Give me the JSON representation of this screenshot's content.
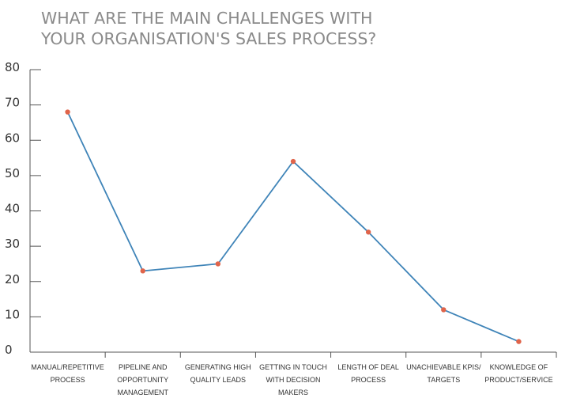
{
  "chart_data": {
    "type": "line",
    "title_lines": [
      "WHAT ARE THE MAIN CHALLENGES WITH",
      "YOUR ORGANISATION'S SALES PROCESS?"
    ],
    "categories": [
      [
        "MANUAL/REPETITIVE",
        "PROCESS"
      ],
      [
        "PIPELINE AND",
        "OPPORTUNITY",
        "MANAGEMENT"
      ],
      [
        "GENERATING HIGH",
        "QUALITY LEADS"
      ],
      [
        "GETTING IN TOUCH",
        "WITH DECISION",
        "MAKERS"
      ],
      [
        "LENGTH OF DEAL",
        "PROCESS"
      ],
      [
        "UNACHIEVABLE KPIS/",
        "TARGETS"
      ],
      [
        "KNOWLEDGE OF",
        "PRODUCT/SERVICE"
      ]
    ],
    "series": [
      {
        "values": [
          68,
          23,
          25,
          54,
          34,
          12,
          3
        ]
      }
    ],
    "ylim": [
      0,
      80
    ],
    "yticks": [
      0,
      10,
      20,
      30,
      40,
      50,
      60,
      70,
      80
    ],
    "xlabel": "",
    "ylabel": "",
    "grid": false,
    "colors": {
      "line": "#3f84b8",
      "marker": "#e0644a",
      "axis": "#555555",
      "title": "#8a8a8a"
    }
  }
}
